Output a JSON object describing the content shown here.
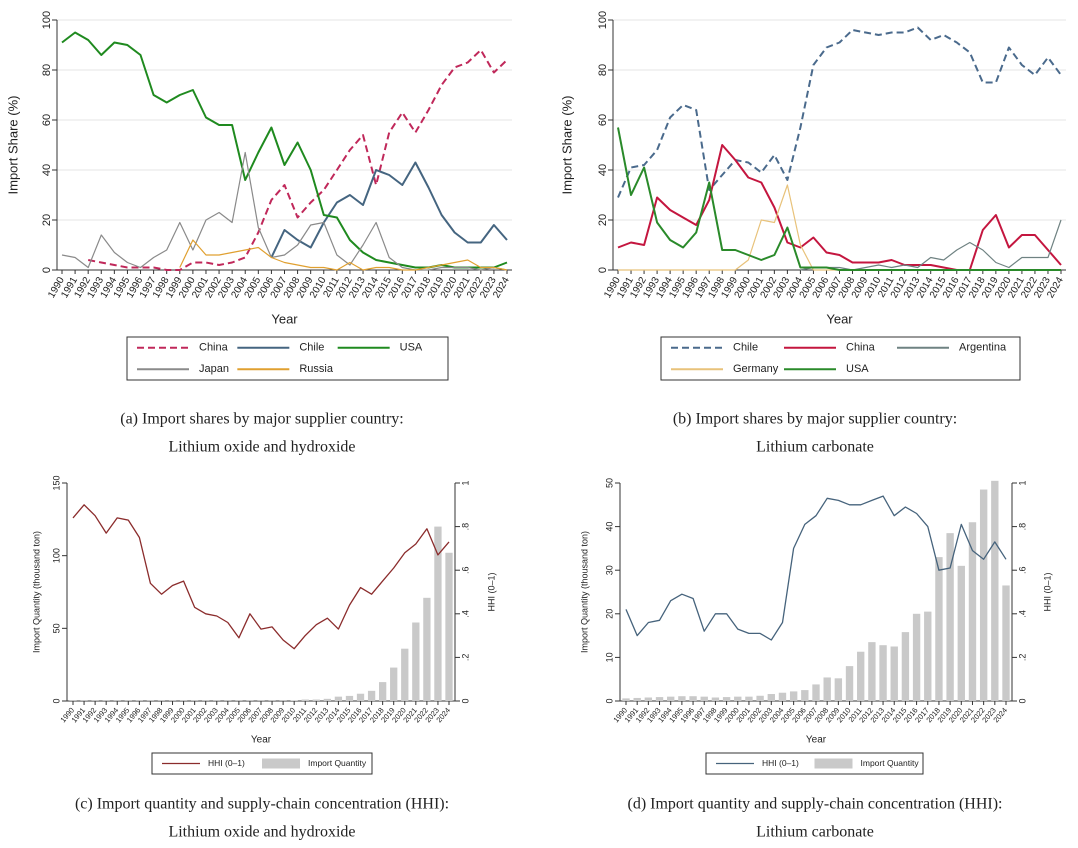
{
  "chart_data": [
    {
      "type": "line",
      "x_label": "Year",
      "y_label": "Import Share (%)",
      "x": [
        1990,
        1991,
        1992,
        1993,
        1994,
        1995,
        1996,
        1997,
        1998,
        1999,
        2000,
        2001,
        2002,
        2003,
        2004,
        2005,
        2006,
        2007,
        2008,
        2009,
        2010,
        2011,
        2012,
        2013,
        2014,
        2015,
        2016,
        2017,
        2018,
        2019,
        2020,
        2021,
        2022,
        2023,
        2024
      ],
      "xlim": [
        1990,
        2024
      ],
      "ylim": [
        0,
        100
      ],
      "yticks": [
        0,
        20,
        40,
        60,
        80,
        100
      ],
      "grid": true,
      "series": [
        {
          "name": "China",
          "color": "#c0285a",
          "line_style": "dashed",
          "values": [
            null,
            null,
            4,
            3,
            2,
            1,
            1,
            1,
            0,
            0,
            3,
            3,
            2,
            3,
            5,
            15,
            28,
            34,
            21,
            27,
            32,
            40,
            48,
            54,
            34,
            55,
            63,
            55,
            64,
            74,
            81,
            83,
            88,
            79,
            84
          ]
        },
        {
          "name": "Chile",
          "color": "#456580",
          "line_style": "solid",
          "values": [
            null,
            null,
            null,
            null,
            null,
            null,
            null,
            null,
            null,
            null,
            null,
            null,
            null,
            null,
            null,
            null,
            5,
            16,
            12,
            9,
            19,
            27,
            30,
            26,
            40,
            38,
            34,
            43,
            33,
            22,
            15,
            11,
            11,
            18,
            12
          ]
        },
        {
          "name": "USA",
          "color": "#1f8a1f",
          "line_style": "solid",
          "values": [
            91,
            95,
            92,
            86,
            91,
            90,
            86,
            70,
            67,
            70,
            72,
            61,
            58,
            58,
            36,
            47,
            57,
            42,
            51,
            40,
            22,
            21,
            12,
            7,
            4,
            3,
            2,
            1,
            1,
            2,
            1,
            1,
            1,
            1,
            3
          ]
        },
        {
          "name": "Japan",
          "color": "#8a8a8a",
          "line_style": "solid",
          "values": [
            6,
            5,
            1,
            14,
            7,
            3,
            1,
            5,
            8,
            19,
            8,
            20,
            23,
            19,
            47,
            17,
            5,
            6,
            10,
            18,
            19,
            6,
            2,
            10,
            19,
            5,
            1,
            0,
            0,
            1,
            1,
            1,
            0,
            1,
            0
          ]
        },
        {
          "name": "Russia",
          "color": "#e0a030",
          "line_style": "solid",
          "values": [
            null,
            null,
            null,
            null,
            null,
            null,
            null,
            null,
            null,
            1,
            12,
            6,
            6,
            7,
            8,
            9,
            5,
            3,
            2,
            1,
            1,
            0,
            3,
            0,
            1,
            1,
            0,
            0,
            1,
            2,
            3,
            4,
            1,
            1,
            0
          ]
        }
      ],
      "caption": [
        "(a) Import shares by major supplier country:",
        "Lithium oxide and hydroxide"
      ]
    },
    {
      "type": "line",
      "x_label": "Year",
      "y_label": "Import Share (%)",
      "x": [
        1990,
        1991,
        1992,
        1993,
        1994,
        1995,
        1996,
        1997,
        1998,
        1999,
        2000,
        2001,
        2002,
        2003,
        2004,
        2005,
        2006,
        2007,
        2008,
        2009,
        2010,
        2011,
        2012,
        2013,
        2014,
        2015,
        2016,
        2017,
        2018,
        2019,
        2020,
        2021,
        2022,
        2023,
        2024
      ],
      "xlim": [
        1990,
        2024
      ],
      "ylim": [
        0,
        100
      ],
      "yticks": [
        0,
        20,
        40,
        60,
        80,
        100
      ],
      "grid": true,
      "series": [
        {
          "name": "Chile",
          "color": "#4a6a8c",
          "line_style": "dashed",
          "values": [
            29,
            41,
            42,
            48,
            61,
            66,
            64,
            32,
            38,
            44,
            43,
            39,
            46,
            36,
            57,
            82,
            89,
            91,
            96,
            95,
            94,
            95,
            95,
            97,
            92,
            94,
            91,
            87,
            75,
            75,
            89,
            82,
            78,
            85,
            78
          ]
        },
        {
          "name": "China",
          "color": "#c4163f",
          "line_style": "solid",
          "values": [
            9,
            11,
            10,
            29,
            24,
            21,
            18,
            28,
            50,
            44,
            37,
            35,
            25,
            11,
            9,
            13,
            7,
            6,
            3,
            3,
            3,
            4,
            2,
            2,
            2,
            1,
            0,
            0,
            16,
            22,
            9,
            14,
            14,
            8,
            2
          ]
        },
        {
          "name": "Argentina",
          "color": "#6f8282",
          "line_style": "solid",
          "values": [
            null,
            null,
            null,
            null,
            null,
            null,
            null,
            null,
            null,
            null,
            null,
            null,
            null,
            null,
            0,
            1,
            1,
            1,
            0,
            1,
            2,
            1,
            2,
            1,
            5,
            4,
            8,
            11,
            8,
            3,
            1,
            5,
            5,
            5,
            20
          ]
        },
        {
          "name": "Germany",
          "color": "#e8c27a",
          "line_style": "solid",
          "values": [
            0,
            0,
            0,
            0,
            0,
            0,
            0,
            0,
            0,
            0,
            4,
            20,
            19,
            34,
            10,
            0,
            0,
            0,
            0,
            0,
            0,
            0,
            0,
            0,
            0,
            0,
            0,
            0,
            0,
            0,
            0,
            0,
            0,
            0,
            0
          ]
        },
        {
          "name": "USA",
          "color": "#2a8a2a",
          "line_style": "solid",
          "values": [
            57,
            30,
            41,
            19,
            12,
            9,
            15,
            35,
            8,
            8,
            6,
            4,
            6,
            17,
            1,
            1,
            1,
            0,
            0,
            0,
            0,
            0,
            0,
            0,
            0,
            0,
            0,
            0,
            0,
            0,
            0,
            0,
            0,
            0,
            0
          ]
        }
      ],
      "caption": [
        "(b) Import shares by major supplier country:",
        "Lithium carbonate"
      ]
    },
    {
      "type": "combo",
      "x_label": "Year",
      "y_label": "Import Quantity (thousand ton)",
      "y2_label": "HHI (0–1)",
      "x": [
        1990,
        1991,
        1992,
        1993,
        1994,
        1995,
        1996,
        1997,
        1998,
        1999,
        2000,
        2001,
        2002,
        2003,
        2004,
        2005,
        2006,
        2007,
        2008,
        2009,
        2010,
        2011,
        2012,
        2013,
        2014,
        2015,
        2016,
        2017,
        2018,
        2019,
        2020,
        2021,
        2022,
        2023,
        2024
      ],
      "xlim": [
        1990,
        2024
      ],
      "ylim": [
        0,
        150
      ],
      "yticks": [
        0,
        50,
        100,
        150
      ],
      "y2lim": [
        0,
        1
      ],
      "y2ticks": [
        0,
        {
          "value": 0.2,
          "label": ".2"
        },
        {
          "value": 0.4,
          "label": ".4"
        },
        {
          "value": 0.6,
          "label": ".6"
        },
        {
          "value": 0.8,
          "label": ".8"
        },
        1
      ],
      "grid": false,
      "series": [
        {
          "name": "HHI (0–1)",
          "type": "line",
          "axis": "y2",
          "color": "#8b2c2c",
          "values": [
            0.84,
            0.9,
            0.85,
            0.77,
            0.84,
            0.83,
            0.75,
            0.54,
            0.49,
            0.53,
            0.55,
            0.43,
            0.4,
            0.39,
            0.36,
            0.29,
            0.4,
            0.33,
            0.34,
            0.28,
            0.24,
            0.3,
            0.35,
            0.38,
            0.33,
            0.44,
            0.52,
            0.49,
            0.55,
            0.61,
            0.68,
            0.72,
            0.79,
            0.67,
            0.73
          ]
        },
        {
          "name": "Import Quantity",
          "type": "bar",
          "color": "#c9c9c9",
          "values": [
            0.2,
            0.2,
            0.2,
            0.2,
            0.2,
            0.2,
            0.2,
            0.2,
            0.2,
            0.2,
            0.2,
            0.2,
            0.2,
            0.2,
            0.2,
            0.2,
            0.2,
            0.2,
            0.2,
            0.2,
            0.5,
            1,
            1,
            1.5,
            3,
            3.5,
            5,
            7,
            13,
            23,
            36,
            54,
            71,
            120,
            102
          ]
        }
      ],
      "caption": [
        "(c) Import quantity and supply-chain concentration (HHI):",
        "Lithium oxide and hydroxide"
      ]
    },
    {
      "type": "combo",
      "x_label": "Year",
      "y_label": "Import Quantity (thousand ton)",
      "y2_label": "HHI (0–1)",
      "x": [
        1990,
        1991,
        1992,
        1993,
        1994,
        1995,
        1996,
        1997,
        1998,
        1999,
        2000,
        2001,
        2002,
        2003,
        2004,
        2005,
        2006,
        2007,
        2008,
        2009,
        2010,
        2011,
        2012,
        2013,
        2014,
        2015,
        2016,
        2017,
        2018,
        2019,
        2020,
        2021,
        2022,
        2023,
        2024
      ],
      "xlim": [
        1990,
        2024
      ],
      "ylim": [
        0,
        50
      ],
      "yticks": [
        0,
        10,
        20,
        30,
        40,
        50
      ],
      "y2lim": [
        0,
        1
      ],
      "y2ticks": [
        0,
        {
          "value": 0.2,
          "label": ".2"
        },
        {
          "value": 0.4,
          "label": ".4"
        },
        {
          "value": 0.6,
          "label": ".6"
        },
        {
          "value": 0.8,
          "label": ".8"
        },
        1
      ],
      "grid": false,
      "series": [
        {
          "name": "HHI (0–1)",
          "type": "line",
          "axis": "y2",
          "color": "#46637c",
          "values": [
            0.42,
            0.3,
            0.36,
            0.37,
            0.46,
            0.49,
            0.47,
            0.32,
            0.4,
            0.4,
            0.33,
            0.31,
            0.31,
            0.28,
            0.36,
            0.7,
            0.81,
            0.85,
            0.93,
            0.92,
            0.9,
            0.9,
            0.92,
            0.94,
            0.85,
            0.89,
            0.86,
            0.8,
            0.6,
            0.61,
            0.81,
            0.69,
            0.65,
            0.73,
            0.65
          ]
        },
        {
          "name": "Import Quantity",
          "type": "bar",
          "color": "#c9c9c9",
          "values": [
            0.6,
            0.7,
            0.8,
            0.9,
            1,
            1.1,
            1.1,
            1,
            0.8,
            0.9,
            1,
            1,
            1.2,
            1.6,
            1.9,
            2.2,
            2.5,
            3.8,
            5.4,
            5.2,
            8,
            11.3,
            13.5,
            12.8,
            12.5,
            15.8,
            20,
            20.5,
            33,
            38.5,
            31,
            41,
            48.5,
            50.5,
            26.5
          ]
        }
      ],
      "caption": [
        "(d) Import quantity and supply-chain concentration (HHI):",
        "Lithium carbonate"
      ]
    }
  ]
}
